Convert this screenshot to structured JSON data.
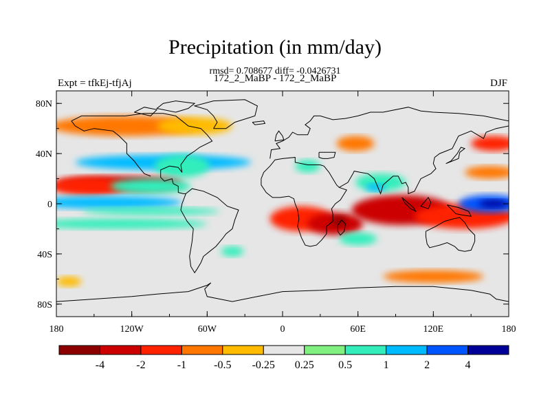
{
  "chart_data": {
    "type": "heatmap",
    "title": "Precipitation (in mm/day)",
    "stats_line": "rmsd= 0.708677 diff= -0.0426731",
    "subtitle": "172_2_MaBP - 172_2_MaBP",
    "left_label": "Expt = tfkEj-tfjAj",
    "right_label": "DJF",
    "xlim": [
      -180,
      180
    ],
    "ylim": [
      -90,
      90
    ],
    "x_ticks": [
      {
        "value": -180,
        "label": "180"
      },
      {
        "value": -120,
        "label": "120W"
      },
      {
        "value": -60,
        "label": "60W"
      },
      {
        "value": 0,
        "label": "0"
      },
      {
        "value": 60,
        "label": "60E"
      },
      {
        "value": 120,
        "label": "120E"
      },
      {
        "value": 180,
        "label": "180"
      }
    ],
    "y_ticks": [
      {
        "value": 80,
        "label": "80N"
      },
      {
        "value": 40,
        "label": "40N"
      },
      {
        "value": 0,
        "label": "0"
      },
      {
        "value": -40,
        "label": "40S"
      },
      {
        "value": -80,
        "label": "80S"
      }
    ],
    "colorbar": {
      "colors": [
        "#8c0000",
        "#cc0000",
        "#ff2200",
        "#ff7700",
        "#ffbb00",
        "#e6e6e6",
        "#80f080",
        "#33eebb",
        "#00bbff",
        "#0055ff",
        "#000099"
      ],
      "labels": [
        "-4",
        "-2",
        "-1",
        "-0.5",
        "-0.25",
        "0.25",
        "0.5",
        "1",
        "2",
        "4"
      ]
    },
    "colors": {
      "background": "#e6e6e6",
      "coastline": "#000000"
    },
    "anomalies": [
      {
        "lon": -95,
        "lat": 33,
        "rlon": 70,
        "rlat": 6,
        "value": 1.2
      },
      {
        "lon": -80,
        "lat": 30,
        "rlon": 22,
        "rlat": 9,
        "value": 0.6
      },
      {
        "lon": -130,
        "lat": 16,
        "rlon": 50,
        "rlat": 6,
        "value": -2.4
      },
      {
        "lon": -155,
        "lat": 14,
        "rlon": 30,
        "rlat": 7,
        "value": -1.3
      },
      {
        "lon": -105,
        "lat": 14,
        "rlon": 32,
        "rlat": 6,
        "value": 0.6
      },
      {
        "lon": -140,
        "lat": 1,
        "rlon": 60,
        "rlat": 5,
        "value": 1.3
      },
      {
        "lon": -105,
        "lat": -6,
        "rlon": 55,
        "rlat": 3,
        "value": 0.8
      },
      {
        "lon": -130,
        "lat": -16,
        "rlon": 70,
        "rlat": 4,
        "value": 1.0
      },
      {
        "lon": -125,
        "lat": 62,
        "rlon": 60,
        "rlat": 8,
        "value": -0.5
      },
      {
        "lon": -70,
        "lat": 62,
        "rlon": 30,
        "rlat": 7,
        "value": -0.35
      },
      {
        "lon": 15,
        "lat": -12,
        "rlon": 25,
        "rlat": 10,
        "value": -1.8
      },
      {
        "lon": 42,
        "lat": -16,
        "rlon": 22,
        "rlat": 9,
        "value": -2.6
      },
      {
        "lon": 45,
        "lat": -14,
        "rlon": 6,
        "rlat": 4,
        "value": -5.0
      },
      {
        "lon": 95,
        "lat": -5,
        "rlon": 40,
        "rlat": 12,
        "value": -2.2
      },
      {
        "lon": 145,
        "lat": -10,
        "rlon": 40,
        "rlat": 10,
        "value": -1.5
      },
      {
        "lon": 165,
        "lat": 0,
        "rlon": 25,
        "rlat": 7,
        "value": 2.5
      },
      {
        "lon": 168,
        "lat": 0,
        "rlon": 12,
        "rlat": 3,
        "value": 5.0
      },
      {
        "lon": 168,
        "lat": 48,
        "rlon": 18,
        "rlat": 6,
        "value": -1.2
      },
      {
        "lon": 165,
        "lat": 25,
        "rlon": 20,
        "rlat": 5,
        "value": -0.8
      },
      {
        "lon": 78,
        "lat": 17,
        "rlon": 20,
        "rlat": 7,
        "value": 0.6
      },
      {
        "lon": 74,
        "lat": 13,
        "rlon": 8,
        "rlat": 3,
        "value": 1.3
      },
      {
        "lon": 20,
        "lat": 30,
        "rlon": 10,
        "rlat": 5,
        "value": 0.6
      },
      {
        "lon": 58,
        "lat": 48,
        "rlon": 15,
        "rlat": 6,
        "value": -0.5
      },
      {
        "lon": 60,
        "lat": -28,
        "rlon": 15,
        "rlat": 5,
        "value": 0.7
      },
      {
        "lon": -40,
        "lat": -38,
        "rlon": 9,
        "rlat": 4,
        "value": 0.6
      },
      {
        "lon": 120,
        "lat": -58,
        "rlon": 40,
        "rlat": 5,
        "value": -0.5
      },
      {
        "lon": -170,
        "lat": -62,
        "rlon": 10,
        "rlat": 4,
        "value": -0.45
      }
    ]
  }
}
